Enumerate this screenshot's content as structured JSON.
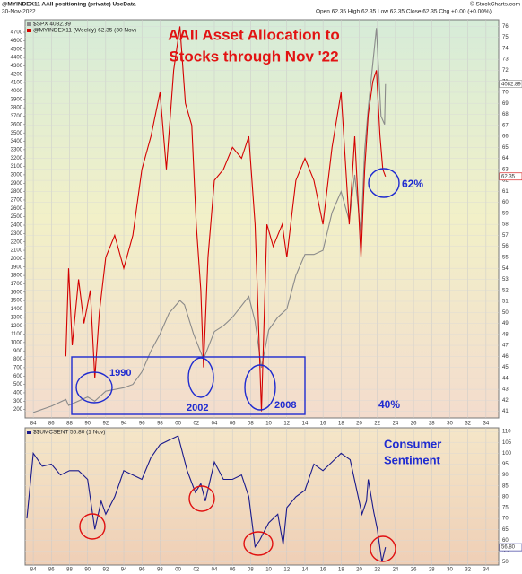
{
  "chart_data": [
    {
      "type": "line",
      "header": {
        "symbol_line": "@MYINDEX11 AAII positioning (private) UseData",
        "date": "30-Nov-2022",
        "ohlc": "Open 62.35  High 62.35  Low 62.35  Close 62.35  Chg +0.00 (+0.00%)",
        "source": "© StockCharts.com"
      },
      "title": [
        "AAII Asset Allocation to",
        "Stocks through Nov '22"
      ],
      "annotations": [
        "62%",
        "1990",
        "2002",
        "2008",
        "40%"
      ],
      "xlim": [
        1983.1,
        2035.4
      ],
      "xticks": [
        {
          "value": 1984,
          "label": "84"
        },
        {
          "value": 1986,
          "label": "86"
        },
        {
          "value": 1988,
          "label": "88"
        },
        {
          "value": 1990,
          "label": "90"
        },
        {
          "value": 1992,
          "label": "92"
        },
        {
          "value": 1994,
          "label": "94"
        },
        {
          "value": 1996,
          "label": "96"
        },
        {
          "value": 1998,
          "label": "98"
        },
        {
          "value": 2000,
          "label": "00"
        },
        {
          "value": 2002,
          "label": "02"
        },
        {
          "value": 2004,
          "label": "04"
        },
        {
          "value": 2006,
          "label": "06"
        },
        {
          "value": 2008,
          "label": "08"
        },
        {
          "value": 2010,
          "label": "10"
        },
        {
          "value": 2012,
          "label": "12"
        },
        {
          "value": 2014,
          "label": "14"
        },
        {
          "value": 2016,
          "label": "16"
        },
        {
          "value": 2018,
          "label": "18"
        },
        {
          "value": 2020,
          "label": "20"
        },
        {
          "value": 2022,
          "label": "22"
        },
        {
          "value": 2024,
          "label": "24"
        },
        {
          "value": 2026,
          "label": "26"
        },
        {
          "value": 2028,
          "label": "28"
        },
        {
          "value": 2030,
          "label": "30"
        },
        {
          "value": 2032,
          "label": "32"
        },
        {
          "value": 2034,
          "label": "34"
        }
      ],
      "ylim": [
        100,
        4850
      ],
      "yticks": [
        200,
        300,
        400,
        500,
        600,
        700,
        800,
        900,
        1000,
        1100,
        1200,
        1300,
        1400,
        1500,
        1600,
        1700,
        1800,
        1900,
        2000,
        2100,
        2200,
        2300,
        2400,
        2500,
        2600,
        2700,
        2800,
        2900,
        3000,
        3100,
        3200,
        3300,
        3400,
        3500,
        3600,
        3700,
        3800,
        3900,
        4000,
        4100,
        4200,
        4300,
        4400,
        4500,
        4600,
        4700
      ],
      "y2lim": [
        40.4,
        76.6
      ],
      "y2ticks": [
        41,
        42,
        43,
        44,
        45,
        46,
        47,
        48,
        49,
        50,
        51,
        52,
        53,
        54,
        55,
        56,
        57,
        58,
        59,
        60,
        61,
        62,
        63,
        64,
        65,
        66,
        67,
        68,
        69,
        70,
        71,
        72,
        73,
        74,
        75,
        76
      ],
      "grid": true,
      "series": [
        {
          "name": "$SPX 4082.89",
          "color": "#8a8a8a",
          "last_value_label": "4082.89",
          "x": [
            1984,
            1986,
            1987.6,
            1987.9,
            1990,
            1990.8,
            1992,
            1994,
            1995,
            1996,
            1997,
            1998,
            1999,
            2000.2,
            2000.7,
            2001.7,
            2002.8,
            2004,
            2005,
            2006,
            2007.8,
            2008.5,
            2009.2,
            2010,
            2011,
            2012,
            2013,
            2014,
            2015,
            2016,
            2017,
            2018,
            2018.9,
            2019.5,
            2020.2,
            2020.6,
            2021,
            2021.9,
            2022.4,
            2022.8,
            2022.9
          ],
          "values": [
            165,
            240,
            320,
            250,
            350,
            300,
            420,
            460,
            500,
            650,
            900,
            1100,
            1350,
            1500,
            1450,
            1100,
            800,
            1130,
            1200,
            1300,
            1550,
            1250,
            700,
            1150,
            1300,
            1400,
            1800,
            2050,
            2050,
            2100,
            2550,
            2800,
            2450,
            3000,
            2300,
            3300,
            3800,
            4750,
            3700,
            3600,
            4082.89
          ]
        },
        {
          "name": "@MYINDEX11 (Weekly) 62.35 (30 Nov)",
          "color": "#d40000",
          "axis": "y2",
          "last_value_label": "62.35",
          "x": [
            1987.6,
            1987.9,
            1988.3,
            1989,
            1989.6,
            1990.3,
            1990.8,
            1991.3,
            1992,
            1993,
            1994,
            1995,
            1996,
            1997,
            1998,
            1998.7,
            1999.5,
            2000.2,
            2000.8,
            2001.5,
            2002,
            2002.5,
            2002.8,
            2003.3,
            2004,
            2005,
            2006,
            2007,
            2007.8,
            2008.5,
            2009.2,
            2009.8,
            2010.5,
            2011.5,
            2012,
            2013,
            2014,
            2015,
            2016,
            2017,
            2018,
            2018.9,
            2019.5,
            2020.2,
            2020.6,
            2021,
            2021.5,
            2021.9,
            2022.3,
            2022.6,
            2022.9
          ],
          "values": [
            46,
            54,
            47,
            53,
            49,
            52,
            44,
            50,
            55,
            57,
            54,
            57,
            63,
            66,
            70,
            63,
            72,
            76,
            69,
            67,
            58,
            52,
            45,
            55,
            62,
            63,
            65,
            64,
            66,
            58,
            41,
            58,
            56,
            58,
            55,
            62,
            64,
            62,
            58,
            65,
            70,
            58,
            66,
            55,
            63,
            68,
            71,
            72,
            66,
            63,
            62.35
          ]
        }
      ]
    },
    {
      "type": "line",
      "annotation": [
        "Consumer",
        "Sentiment"
      ],
      "xlim": [
        1983.1,
        2035.4
      ],
      "xticks": [
        {
          "value": 1984,
          "label": "84"
        },
        {
          "value": 1986,
          "label": "86"
        },
        {
          "value": 1988,
          "label": "88"
        },
        {
          "value": 1990,
          "label": "90"
        },
        {
          "value": 1992,
          "label": "92"
        },
        {
          "value": 1994,
          "label": "94"
        },
        {
          "value": 1996,
          "label": "96"
        },
        {
          "value": 1998,
          "label": "98"
        },
        {
          "value": 2000,
          "label": "00"
        },
        {
          "value": 2002,
          "label": "02"
        },
        {
          "value": 2004,
          "label": "04"
        },
        {
          "value": 2006,
          "label": "06"
        },
        {
          "value": 2008,
          "label": "08"
        },
        {
          "value": 2010,
          "label": "10"
        },
        {
          "value": 2012,
          "label": "12"
        },
        {
          "value": 2014,
          "label": "14"
        },
        {
          "value": 2016,
          "label": "16"
        },
        {
          "value": 2018,
          "label": "18"
        },
        {
          "value": 2020,
          "label": "20"
        },
        {
          "value": 2022,
          "label": "22"
        },
        {
          "value": 2024,
          "label": "24"
        },
        {
          "value": 2026,
          "label": "26"
        },
        {
          "value": 2028,
          "label": "28"
        },
        {
          "value": 2030,
          "label": "30"
        },
        {
          "value": 2032,
          "label": "32"
        },
        {
          "value": 2034,
          "label": "34"
        }
      ],
      "y2lim": [
        48.6,
        111.7
      ],
      "y2ticks": [
        50,
        55,
        60,
        65,
        70,
        75,
        80,
        85,
        90,
        95,
        100,
        105,
        110
      ],
      "grid": true,
      "series": [
        {
          "name": "$$UMCSENT 56.80 (1 Nov)",
          "color": "#1a1a8c",
          "axis": "y2",
          "last_value_label": "56.80",
          "x": [
            1983.3,
            1984,
            1985,
            1986,
            1987,
            1988,
            1989,
            1990,
            1990.8,
            1991.5,
            1992,
            1993,
            1994,
            1995,
            1996,
            1997,
            1998,
            1999,
            2000,
            2001,
            2001.9,
            2002.5,
            2003,
            2004,
            2005,
            2006,
            2007,
            2007.8,
            2008.5,
            2009,
            2010,
            2011,
            2011.6,
            2012,
            2013,
            2014,
            2015,
            2016,
            2017,
            2018,
            2019,
            2020.3,
            2020.8,
            2021,
            2021.6,
            2022,
            2022.5,
            2022.9
          ],
          "values": [
            70,
            100,
            94,
            95,
            90,
            92,
            92,
            88,
            65,
            78,
            72,
            80,
            92,
            90,
            88,
            98,
            104,
            106,
            108,
            92,
            82,
            86,
            78,
            96,
            88,
            88,
            90,
            80,
            57,
            60,
            68,
            72,
            58,
            75,
            80,
            83,
            95,
            92,
            96,
            100,
            97,
            72,
            78,
            88,
            73,
            65,
            50,
            56.8
          ]
        }
      ]
    }
  ]
}
